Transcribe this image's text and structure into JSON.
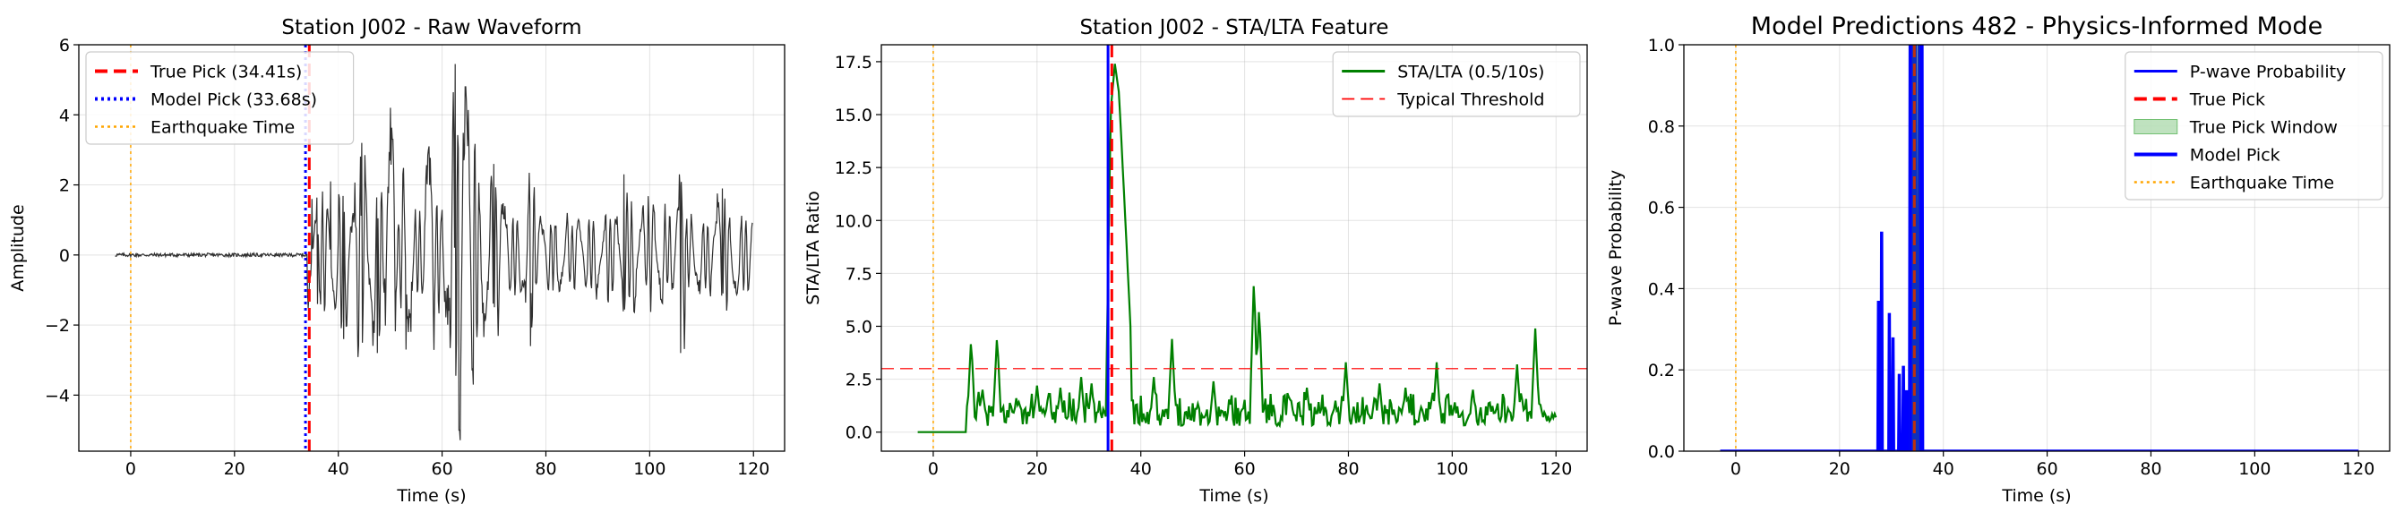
{
  "chart_data": [
    {
      "type": "line",
      "title": "Station J002 - Raw Waveform",
      "xlabel": "Time (s)",
      "ylabel": "Amplitude",
      "xlim": [
        -10,
        126
      ],
      "ylim": [
        -5.6,
        6
      ],
      "xticks": [
        0,
        20,
        40,
        60,
        80,
        100,
        120
      ],
      "yticks": [
        -4,
        -2,
        0,
        2,
        4,
        6
      ],
      "xtick_labels": [
        "0",
        "20",
        "40",
        "60",
        "80",
        "100",
        "120"
      ],
      "ytick_labels": [
        "−4",
        "−2",
        "0",
        "2",
        "4",
        "6"
      ],
      "grid": true,
      "legend_position": "upper-left",
      "series": [
        {
          "name": "",
          "kind": "waveform",
          "color": "#1a1a1a",
          "t_start": -3,
          "t_end": 120,
          "t_onset": 34.0,
          "noise_amplitude": 0.05,
          "peak_max": 5.45,
          "peak_min": -5.0,
          "peak_time": 62.5,
          "peaks": [
            {
              "t": 34.9,
              "v": 1.6
            },
            {
              "t": 36.0,
              "v": -1.4
            },
            {
              "t": 38.5,
              "v": 2.1
            },
            {
              "t": 41.0,
              "v": -2.4
            },
            {
              "t": 44.5,
              "v": 3.2
            },
            {
              "t": 47.5,
              "v": -2.8
            },
            {
              "t": 50.0,
              "v": 4.2
            },
            {
              "t": 53.0,
              "v": -2.7
            },
            {
              "t": 57.5,
              "v": 3.1
            },
            {
              "t": 62.5,
              "v": 5.45
            },
            {
              "t": 63.3,
              "v": -5.0
            },
            {
              "t": 64.5,
              "v": 4.8
            },
            {
              "t": 66.0,
              "v": -3.7
            },
            {
              "t": 70.0,
              "v": 2.6
            },
            {
              "t": 77.0,
              "v": -2.6
            },
            {
              "t": 95.0,
              "v": 2.3
            },
            {
              "t": 106.0,
              "v": -2.8
            },
            {
              "t": 114.0,
              "v": 1.9
            },
            {
              "t": 120.0,
              "v": -0.7
            }
          ]
        },
        {
          "name": "True Pick (34.41s)",
          "kind": "vline",
          "x": 34.41,
          "color": "#ff0000",
          "style": "dashed",
          "width": 3
        },
        {
          "name": "Model Pick (33.68s)",
          "kind": "vline",
          "x": 33.68,
          "color": "#0000ff",
          "style": "dotted",
          "width": 3
        },
        {
          "name": "Earthquake Time",
          "kind": "vline",
          "x": 0,
          "color": "#ffa500",
          "style": "dotted",
          "width": 1.5
        }
      ]
    },
    {
      "type": "line",
      "title": "Station J002 - STA/LTA Feature",
      "xlabel": "Time (s)",
      "ylabel": "STA/LTA Ratio",
      "xlim": [
        -10,
        126
      ],
      "ylim": [
        -0.9,
        18.3
      ],
      "xticks": [
        0,
        20,
        40,
        60,
        80,
        100,
        120
      ],
      "yticks": [
        0.0,
        2.5,
        5.0,
        7.5,
        10.0,
        12.5,
        15.0,
        17.5
      ],
      "xtick_labels": [
        "0",
        "20",
        "40",
        "60",
        "80",
        "100",
        "120"
      ],
      "ytick_labels": [
        "0.0",
        "2.5",
        "5.0",
        "7.5",
        "10.0",
        "12.5",
        "15.0",
        "17.5"
      ],
      "grid": true,
      "legend_position": "upper-right",
      "series": [
        {
          "name": "STA/LTA (0.5/10s)",
          "kind": "stalta",
          "color": "#008000",
          "t_start": -3,
          "t_end": 120,
          "peaks": [
            {
              "t": 7.3,
              "v": 4.4
            },
            {
              "t": 9.5,
              "v": 2.0
            },
            {
              "t": 12.3,
              "v": 4.6
            },
            {
              "t": 16.0,
              "v": 1.6
            },
            {
              "t": 20.0,
              "v": 2.2
            },
            {
              "t": 24.5,
              "v": 2.1
            },
            {
              "t": 28.5,
              "v": 2.6
            },
            {
              "t": 30.5,
              "v": 2.3
            },
            {
              "t": 34.2,
              "v": 15.2
            },
            {
              "t": 35.0,
              "v": 17.4
            },
            {
              "t": 35.8,
              "v": 16.0
            },
            {
              "t": 37.0,
              "v": 10.1
            },
            {
              "t": 38.0,
              "v": 5.0
            },
            {
              "t": 42.5,
              "v": 2.6
            },
            {
              "t": 46.0,
              "v": 4.4
            },
            {
              "t": 54.0,
              "v": 2.4
            },
            {
              "t": 61.8,
              "v": 7.3
            },
            {
              "t": 62.8,
              "v": 6.0
            },
            {
              "t": 72.0,
              "v": 2.1
            },
            {
              "t": 79.5,
              "v": 3.3
            },
            {
              "t": 86.0,
              "v": 2.3
            },
            {
              "t": 91.0,
              "v": 2.1
            },
            {
              "t": 97.0,
              "v": 3.3
            },
            {
              "t": 104.0,
              "v": 2.0
            },
            {
              "t": 112.5,
              "v": 3.2
            },
            {
              "t": 116.0,
              "v": 4.9
            },
            {
              "t": 120.0,
              "v": 0.7
            }
          ]
        },
        {
          "name": "Typical Threshold",
          "kind": "hline",
          "y": 3.0,
          "color": "#ff0000",
          "style": "dashed",
          "width": 1.5
        },
        {
          "name": "",
          "kind": "vline",
          "x": 34.41,
          "color": "#ff0000",
          "style": "dashed",
          "width": 3
        },
        {
          "name": "",
          "kind": "vline",
          "x": 33.68,
          "color": "#0000ff",
          "style": "solid",
          "width": 3
        },
        {
          "name": "",
          "kind": "vline",
          "x": 0,
          "color": "#ffa500",
          "style": "dotted",
          "width": 1.5
        }
      ]
    },
    {
      "type": "line",
      "title": "Model Predictions 482 - Physics-Informed Mode",
      "xlabel": "Time (s)",
      "ylabel": "P-wave Probability",
      "xlim": [
        -10,
        126
      ],
      "ylim": [
        0,
        1
      ],
      "xticks": [
        0,
        20,
        40,
        60,
        80,
        100,
        120
      ],
      "yticks": [
        0.0,
        0.2,
        0.4,
        0.6,
        0.8,
        1.0
      ],
      "xtick_labels": [
        "0",
        "20",
        "40",
        "60",
        "80",
        "100",
        "120"
      ],
      "ytick_labels": [
        "0.0",
        "0.2",
        "0.4",
        "0.6",
        "0.8",
        "1.0"
      ],
      "grid": true,
      "legend_position": "upper-right",
      "series": [
        {
          "name": "P-wave Probability",
          "kind": "prob",
          "color": "#0000ff",
          "t_start": -3,
          "t_end": 120,
          "spikes": [
            {
              "t": 27.5,
              "v": 0.37
            },
            {
              "t": 27.9,
              "v": 0.08
            },
            {
              "t": 28.1,
              "v": 0.54
            },
            {
              "t": 29.6,
              "v": 0.34
            },
            {
              "t": 30.3,
              "v": 0.28
            },
            {
              "t": 31.5,
              "v": 0.19
            },
            {
              "t": 32.3,
              "v": 0.21
            },
            {
              "t": 32.9,
              "v": 0.15
            },
            {
              "t": 33.6,
              "v": 1.0
            },
            {
              "t": 34.0,
              "v": 1.0
            },
            {
              "t": 34.6,
              "v": 1.0
            },
            {
              "t": 35.3,
              "v": 1.0
            },
            {
              "t": 35.9,
              "v": 1.0
            }
          ]
        },
        {
          "name": "True Pick",
          "kind": "vline",
          "x": 34.41,
          "color": "#ff0000",
          "style": "dashed",
          "width": 3
        },
        {
          "name": "True Pick Window",
          "kind": "span",
          "x0": 33.4,
          "x1": 35.4,
          "color": "#2ca02c",
          "opacity": 0.3
        },
        {
          "name": "Model Pick",
          "kind": "vline",
          "x": 33.68,
          "color": "#0000ff",
          "style": "solid",
          "width": 3
        },
        {
          "name": "Earthquake Time",
          "kind": "vline",
          "x": 0,
          "color": "#ffa500",
          "style": "dotted",
          "width": 1.5
        }
      ]
    }
  ]
}
